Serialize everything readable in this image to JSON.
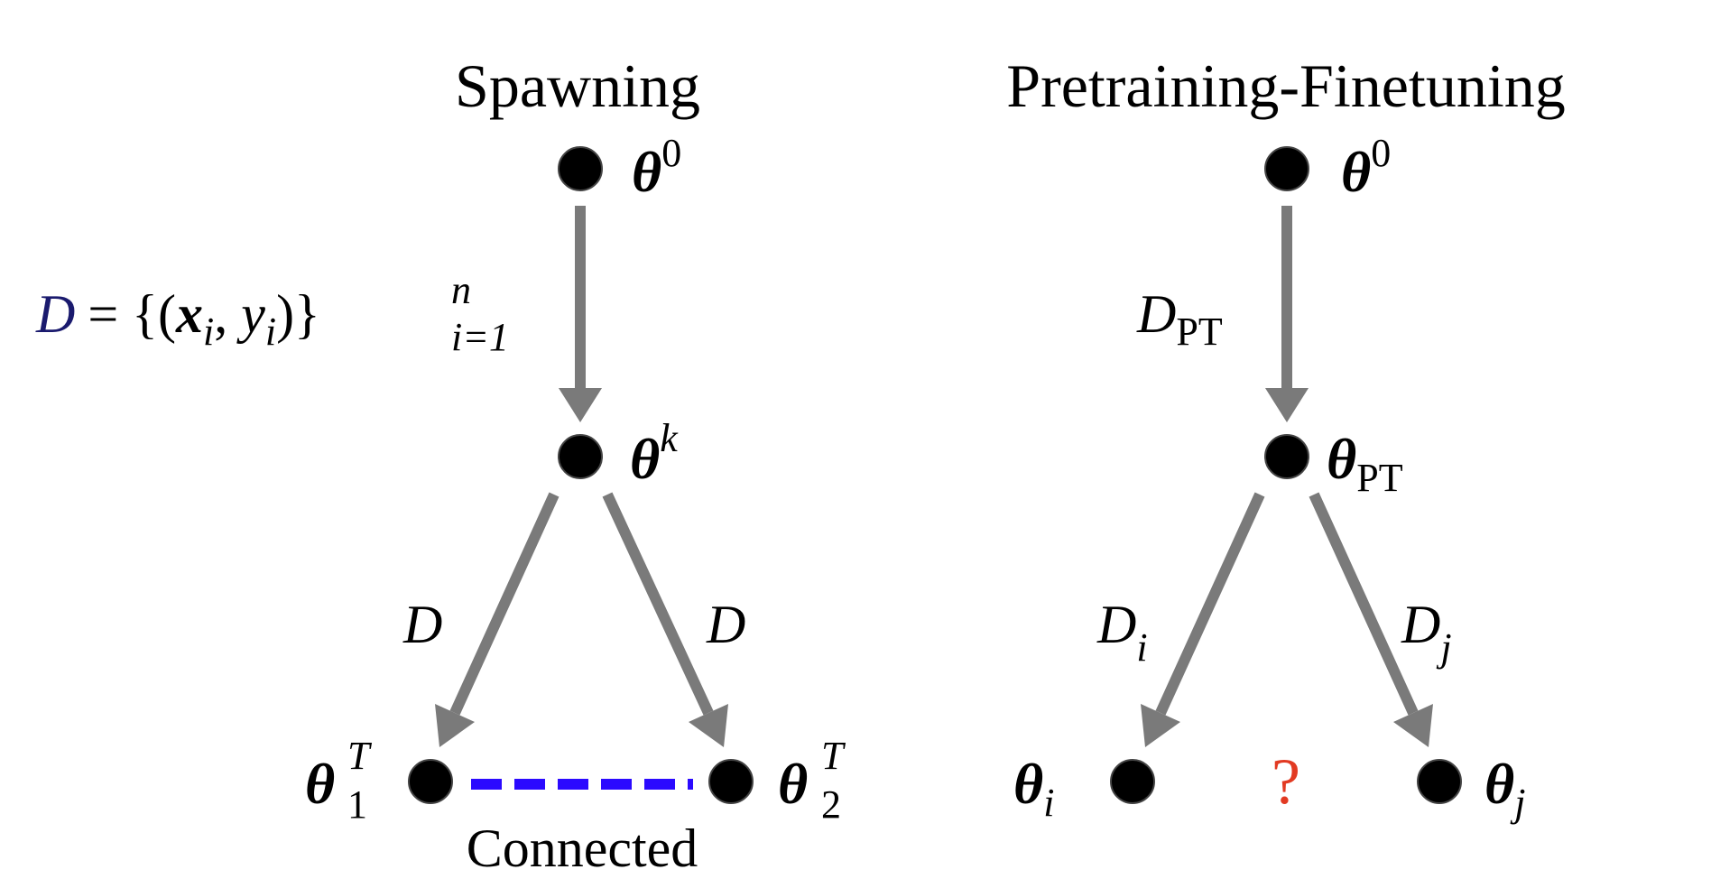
{
  "diagram": {
    "left": {
      "title": "Spawning",
      "nodes": {
        "top": {
          "base": "θ",
          "sup": "0"
        },
        "mid": {
          "base": "θ",
          "sup": "k"
        },
        "left": {
          "base": "θ",
          "sup": "T",
          "sub": "1"
        },
        "right": {
          "base": "θ",
          "sup": "T",
          "sub": "2"
        }
      },
      "dataset_label": {
        "D": "D",
        "eq": "= {(",
        "x": "x",
        "i1": "i",
        "comma": ", ",
        "y": "y",
        "i2": "i",
        "close": ")}",
        "sup": "n",
        "sub": "i=1"
      },
      "edge_left_label": "D",
      "edge_right_label": "D",
      "connection_label": "Connected"
    },
    "right": {
      "title": "Pretraining-Finetuning",
      "nodes": {
        "top": {
          "base": "θ",
          "sup": "0"
        },
        "mid": {
          "base": "θ",
          "sub": "PT"
        },
        "left": {
          "base": "θ",
          "sub": "i"
        },
        "right": {
          "base": "θ",
          "sub": "j"
        }
      },
      "edge_top_label": {
        "base": "D",
        "sub": "PT"
      },
      "edge_left_label": {
        "base": "D",
        "sub": "i"
      },
      "edge_right_label": {
        "base": "D",
        "sub": "j"
      },
      "question": "?"
    },
    "colors": {
      "arrow": "#7a7a7a",
      "node": "#000000",
      "connected_dash": "#2b0aff",
      "question": "#e23a22",
      "dataset_D": "#1a1a6e"
    }
  }
}
